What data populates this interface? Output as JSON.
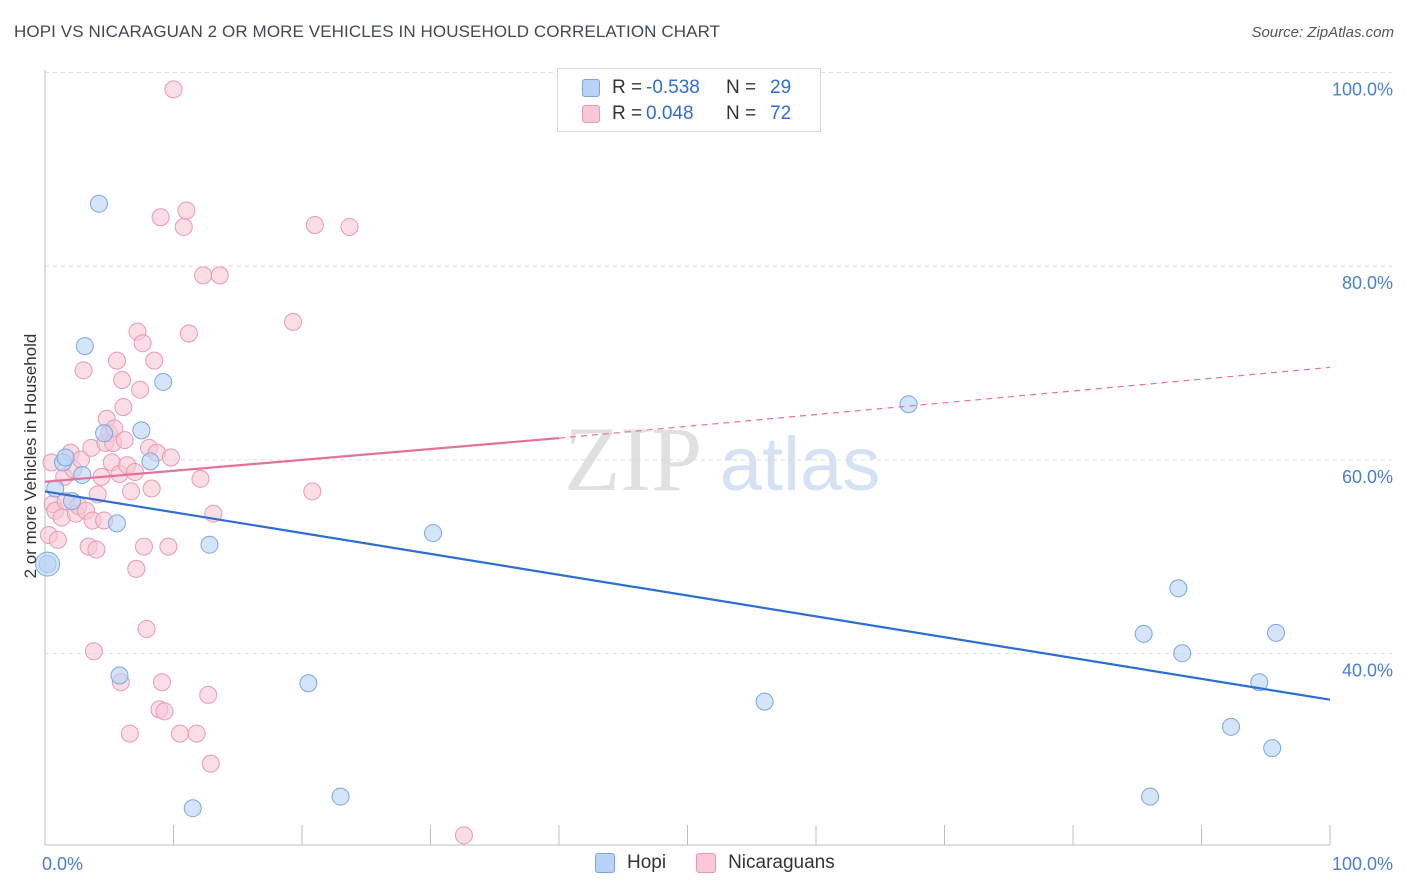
{
  "title": "HOPI VS NICARAGUAN 2 OR MORE VEHICLES IN HOUSEHOLD CORRELATION CHART",
  "source": "Source: ZipAtlas.com",
  "watermark": {
    "zip": "ZIP",
    "atlas": "atlas"
  },
  "colors": {
    "hopi_fill": "#b8d3f7",
    "hopi_stroke": "#7aa6e0",
    "hopi_line": "#2d6fd1",
    "nic_fill": "#f9c7d6",
    "nic_stroke": "#e89ab3",
    "nic_line": "#e5729a",
    "tick_text": "#4a7fd0",
    "grid": "#dddddd"
  },
  "legend": {
    "rows": [
      {
        "r_label": "R =",
        "r_value": "-0.538",
        "n_label": "N =",
        "n_value": "29"
      },
      {
        "r_label": "R =",
        "r_value": "0.048",
        "n_label": "N =",
        "n_value": "72"
      }
    ]
  },
  "bottom_legend": {
    "hopi": "Hopi",
    "nicaraguans": "Nicaraguans"
  },
  "chart_data": {
    "type": "scatter",
    "title": "HOPI VS NICARAGUAN 2 OR MORE VEHICLES IN HOUSEHOLD CORRELATION CHART",
    "xlabel": "",
    "ylabel": "2 or more Vehicles in Household",
    "xlim": [
      0,
      100
    ],
    "ylim": [
      22,
      102
    ],
    "x_tick_labels": [
      "0.0%",
      "100.0%"
    ],
    "y_ticks": [
      40,
      60,
      80,
      100
    ],
    "y_tick_labels": [
      "40.0%",
      "60.0%",
      "80.0%",
      "100.0%"
    ],
    "grid": true,
    "series": [
      {
        "name": "Hopi",
        "points": [
          [
            0.2,
            51.0
          ],
          [
            0.8,
            58.8
          ],
          [
            1.4,
            61.5
          ],
          [
            1.6,
            62.0
          ],
          [
            2.1,
            57.5
          ],
          [
            2.9,
            60.2
          ],
          [
            3.1,
            73.5
          ],
          [
            4.2,
            88.2
          ],
          [
            4.6,
            64.5
          ],
          [
            5.6,
            55.2
          ],
          [
            5.8,
            39.5
          ],
          [
            7.5,
            64.8
          ],
          [
            8.2,
            61.6
          ],
          [
            9.2,
            69.8
          ],
          [
            11.5,
            25.8
          ],
          [
            12.8,
            53.0
          ],
          [
            20.5,
            38.7
          ],
          [
            23.0,
            27.0
          ],
          [
            30.2,
            54.2
          ],
          [
            56.0,
            36.8
          ],
          [
            67.2,
            67.5
          ],
          [
            85.5,
            43.8
          ],
          [
            86.0,
            27.0
          ],
          [
            88.2,
            48.5
          ],
          [
            88.5,
            41.8
          ],
          [
            92.3,
            34.2
          ],
          [
            94.5,
            38.8
          ],
          [
            95.5,
            32.0
          ],
          [
            95.8,
            43.9
          ]
        ],
        "trend": {
          "x": [
            0,
            100
          ],
          "y": [
            58.5,
            37.0
          ]
        }
      },
      {
        "name": "Nicaraguans",
        "points": [
          [
            0.3,
            54.0
          ],
          [
            0.5,
            61.5
          ],
          [
            0.6,
            57.2
          ],
          [
            0.8,
            56.5
          ],
          [
            1.0,
            53.5
          ],
          [
            1.3,
            55.8
          ],
          [
            1.5,
            60.0
          ],
          [
            1.6,
            57.5
          ],
          [
            2.0,
            62.5
          ],
          [
            2.2,
            60.8
          ],
          [
            2.4,
            56.2
          ],
          [
            2.6,
            57.0
          ],
          [
            2.8,
            61.8
          ],
          [
            3.0,
            71.0
          ],
          [
            3.2,
            56.5
          ],
          [
            3.4,
            52.8
          ],
          [
            3.6,
            63.0
          ],
          [
            3.7,
            55.5
          ],
          [
            3.8,
            42.0
          ],
          [
            4.0,
            52.5
          ],
          [
            4.1,
            58.2
          ],
          [
            4.4,
            60.0
          ],
          [
            4.6,
            55.5
          ],
          [
            4.7,
            63.5
          ],
          [
            4.8,
            66.0
          ],
          [
            5.0,
            64.5
          ],
          [
            5.2,
            61.5
          ],
          [
            5.3,
            63.5
          ],
          [
            5.4,
            65.0
          ],
          [
            5.6,
            72.0
          ],
          [
            5.8,
            60.3
          ],
          [
            5.9,
            38.8
          ],
          [
            6.0,
            70.0
          ],
          [
            6.1,
            67.2
          ],
          [
            6.2,
            63.8
          ],
          [
            6.4,
            61.2
          ],
          [
            6.6,
            33.5
          ],
          [
            6.7,
            58.5
          ],
          [
            7.0,
            60.5
          ],
          [
            7.1,
            50.5
          ],
          [
            7.2,
            75.0
          ],
          [
            7.4,
            69.0
          ],
          [
            7.6,
            73.8
          ],
          [
            7.7,
            52.8
          ],
          [
            7.9,
            44.3
          ],
          [
            8.1,
            63.0
          ],
          [
            8.3,
            58.8
          ],
          [
            8.5,
            72.0
          ],
          [
            8.7,
            62.5
          ],
          [
            8.9,
            36.0
          ],
          [
            9.0,
            86.8
          ],
          [
            9.1,
            38.8
          ],
          [
            9.3,
            35.8
          ],
          [
            9.6,
            52.8
          ],
          [
            9.8,
            62.0
          ],
          [
            10.0,
            100.0
          ],
          [
            10.5,
            33.5
          ],
          [
            10.8,
            85.8
          ],
          [
            11.0,
            87.5
          ],
          [
            11.2,
            74.8
          ],
          [
            11.8,
            33.5
          ],
          [
            12.1,
            59.8
          ],
          [
            12.3,
            80.8
          ],
          [
            12.7,
            37.5
          ],
          [
            12.9,
            30.4
          ],
          [
            13.1,
            56.2
          ],
          [
            13.6,
            80.8
          ],
          [
            19.3,
            76.0
          ],
          [
            20.8,
            58.5
          ],
          [
            21.0,
            86.0
          ],
          [
            23.7,
            85.8
          ],
          [
            32.6,
            23.0
          ]
        ],
        "trend": {
          "x": [
            0,
            40
          ],
          "y": [
            59.5,
            64.0
          ]
        },
        "trend_extension": {
          "x": [
            40,
            100
          ],
          "y": [
            64.0,
            71.3
          ]
        }
      }
    ]
  }
}
